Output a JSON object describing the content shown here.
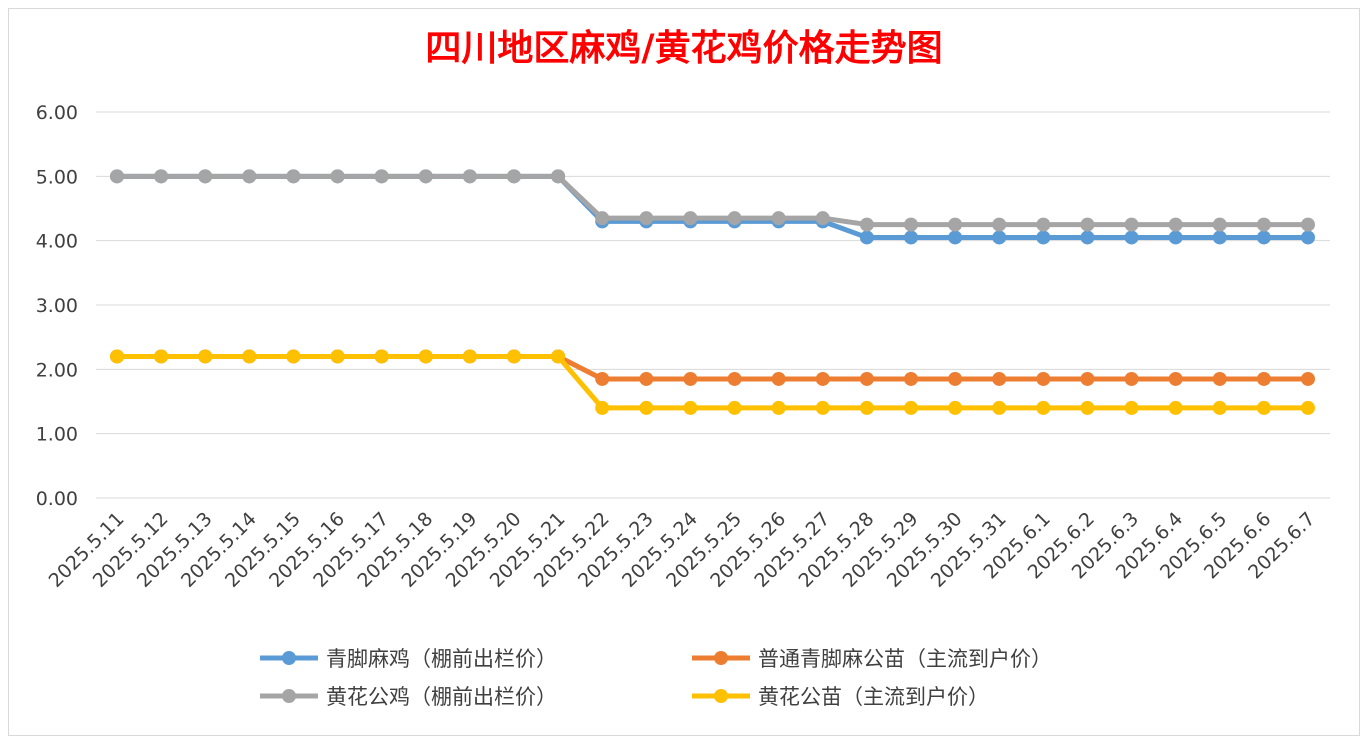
{
  "chart_data": {
    "type": "line",
    "title": "四川地区麻鸡/黄花鸡价格走势图",
    "xlabel": "",
    "ylabel": "",
    "ylim": [
      0,
      6
    ],
    "yticks": [
      "0.00",
      "1.00",
      "2.00",
      "3.00",
      "4.00",
      "5.00",
      "6.00"
    ],
    "grid": true,
    "legend_position": "bottom",
    "categories": [
      "2025.5.11",
      "2025.5.12",
      "2025.5.13",
      "2025.5.14",
      "2025.5.15",
      "2025.5.16",
      "2025.5.17",
      "2025.5.18",
      "2025.5.19",
      "2025.5.20",
      "2025.5.21",
      "2025.5.22",
      "2025.5.23",
      "2025.5.24",
      "2025.5.25",
      "2025.5.26",
      "2025.5.27",
      "2025.5.28",
      "2025.5.29",
      "2025.5.30",
      "2025.5.31",
      "2025.6.1",
      "2025.6.2",
      "2025.6.3",
      "2025.6.4",
      "2025.6.5",
      "2025.6.6",
      "2025.6.7"
    ],
    "series": [
      {
        "name": "青脚麻鸡（棚前出栏价）",
        "color": "#5b9bd5",
        "values": [
          5,
          5,
          5,
          5,
          5,
          5,
          5,
          5,
          5,
          5,
          5,
          4.3,
          4.3,
          4.3,
          4.3,
          4.3,
          4.3,
          4.05,
          4.05,
          4.05,
          4.05,
          4.05,
          4.05,
          4.05,
          4.05,
          4.05,
          4.05,
          4.05
        ]
      },
      {
        "name": "普通青脚麻公苗（主流到户价）",
        "color": "#ed7d31",
        "values": [
          2.2,
          2.2,
          2.2,
          2.2,
          2.2,
          2.2,
          2.2,
          2.2,
          2.2,
          2.2,
          2.2,
          1.85,
          1.85,
          1.85,
          1.85,
          1.85,
          1.85,
          1.85,
          1.85,
          1.85,
          1.85,
          1.85,
          1.85,
          1.85,
          1.85,
          1.85,
          1.85,
          1.85
        ]
      },
      {
        "name": "黄花公鸡（棚前出栏价）",
        "color": "#a5a5a5",
        "values": [
          5,
          5,
          5,
          5,
          5,
          5,
          5,
          5,
          5,
          5,
          5,
          4.35,
          4.35,
          4.35,
          4.35,
          4.35,
          4.35,
          4.25,
          4.25,
          4.25,
          4.25,
          4.25,
          4.25,
          4.25,
          4.25,
          4.25,
          4.25,
          4.25
        ]
      },
      {
        "name": "黄花公苗（主流到户价）",
        "color": "#ffc000",
        "values": [
          2.2,
          2.2,
          2.2,
          2.2,
          2.2,
          2.2,
          2.2,
          2.2,
          2.2,
          2.2,
          2.2,
          1.4,
          1.4,
          1.4,
          1.4,
          1.4,
          1.4,
          1.4,
          1.4,
          1.4,
          1.4,
          1.4,
          1.4,
          1.4,
          1.4,
          1.4,
          1.4,
          1.4
        ]
      }
    ]
  }
}
